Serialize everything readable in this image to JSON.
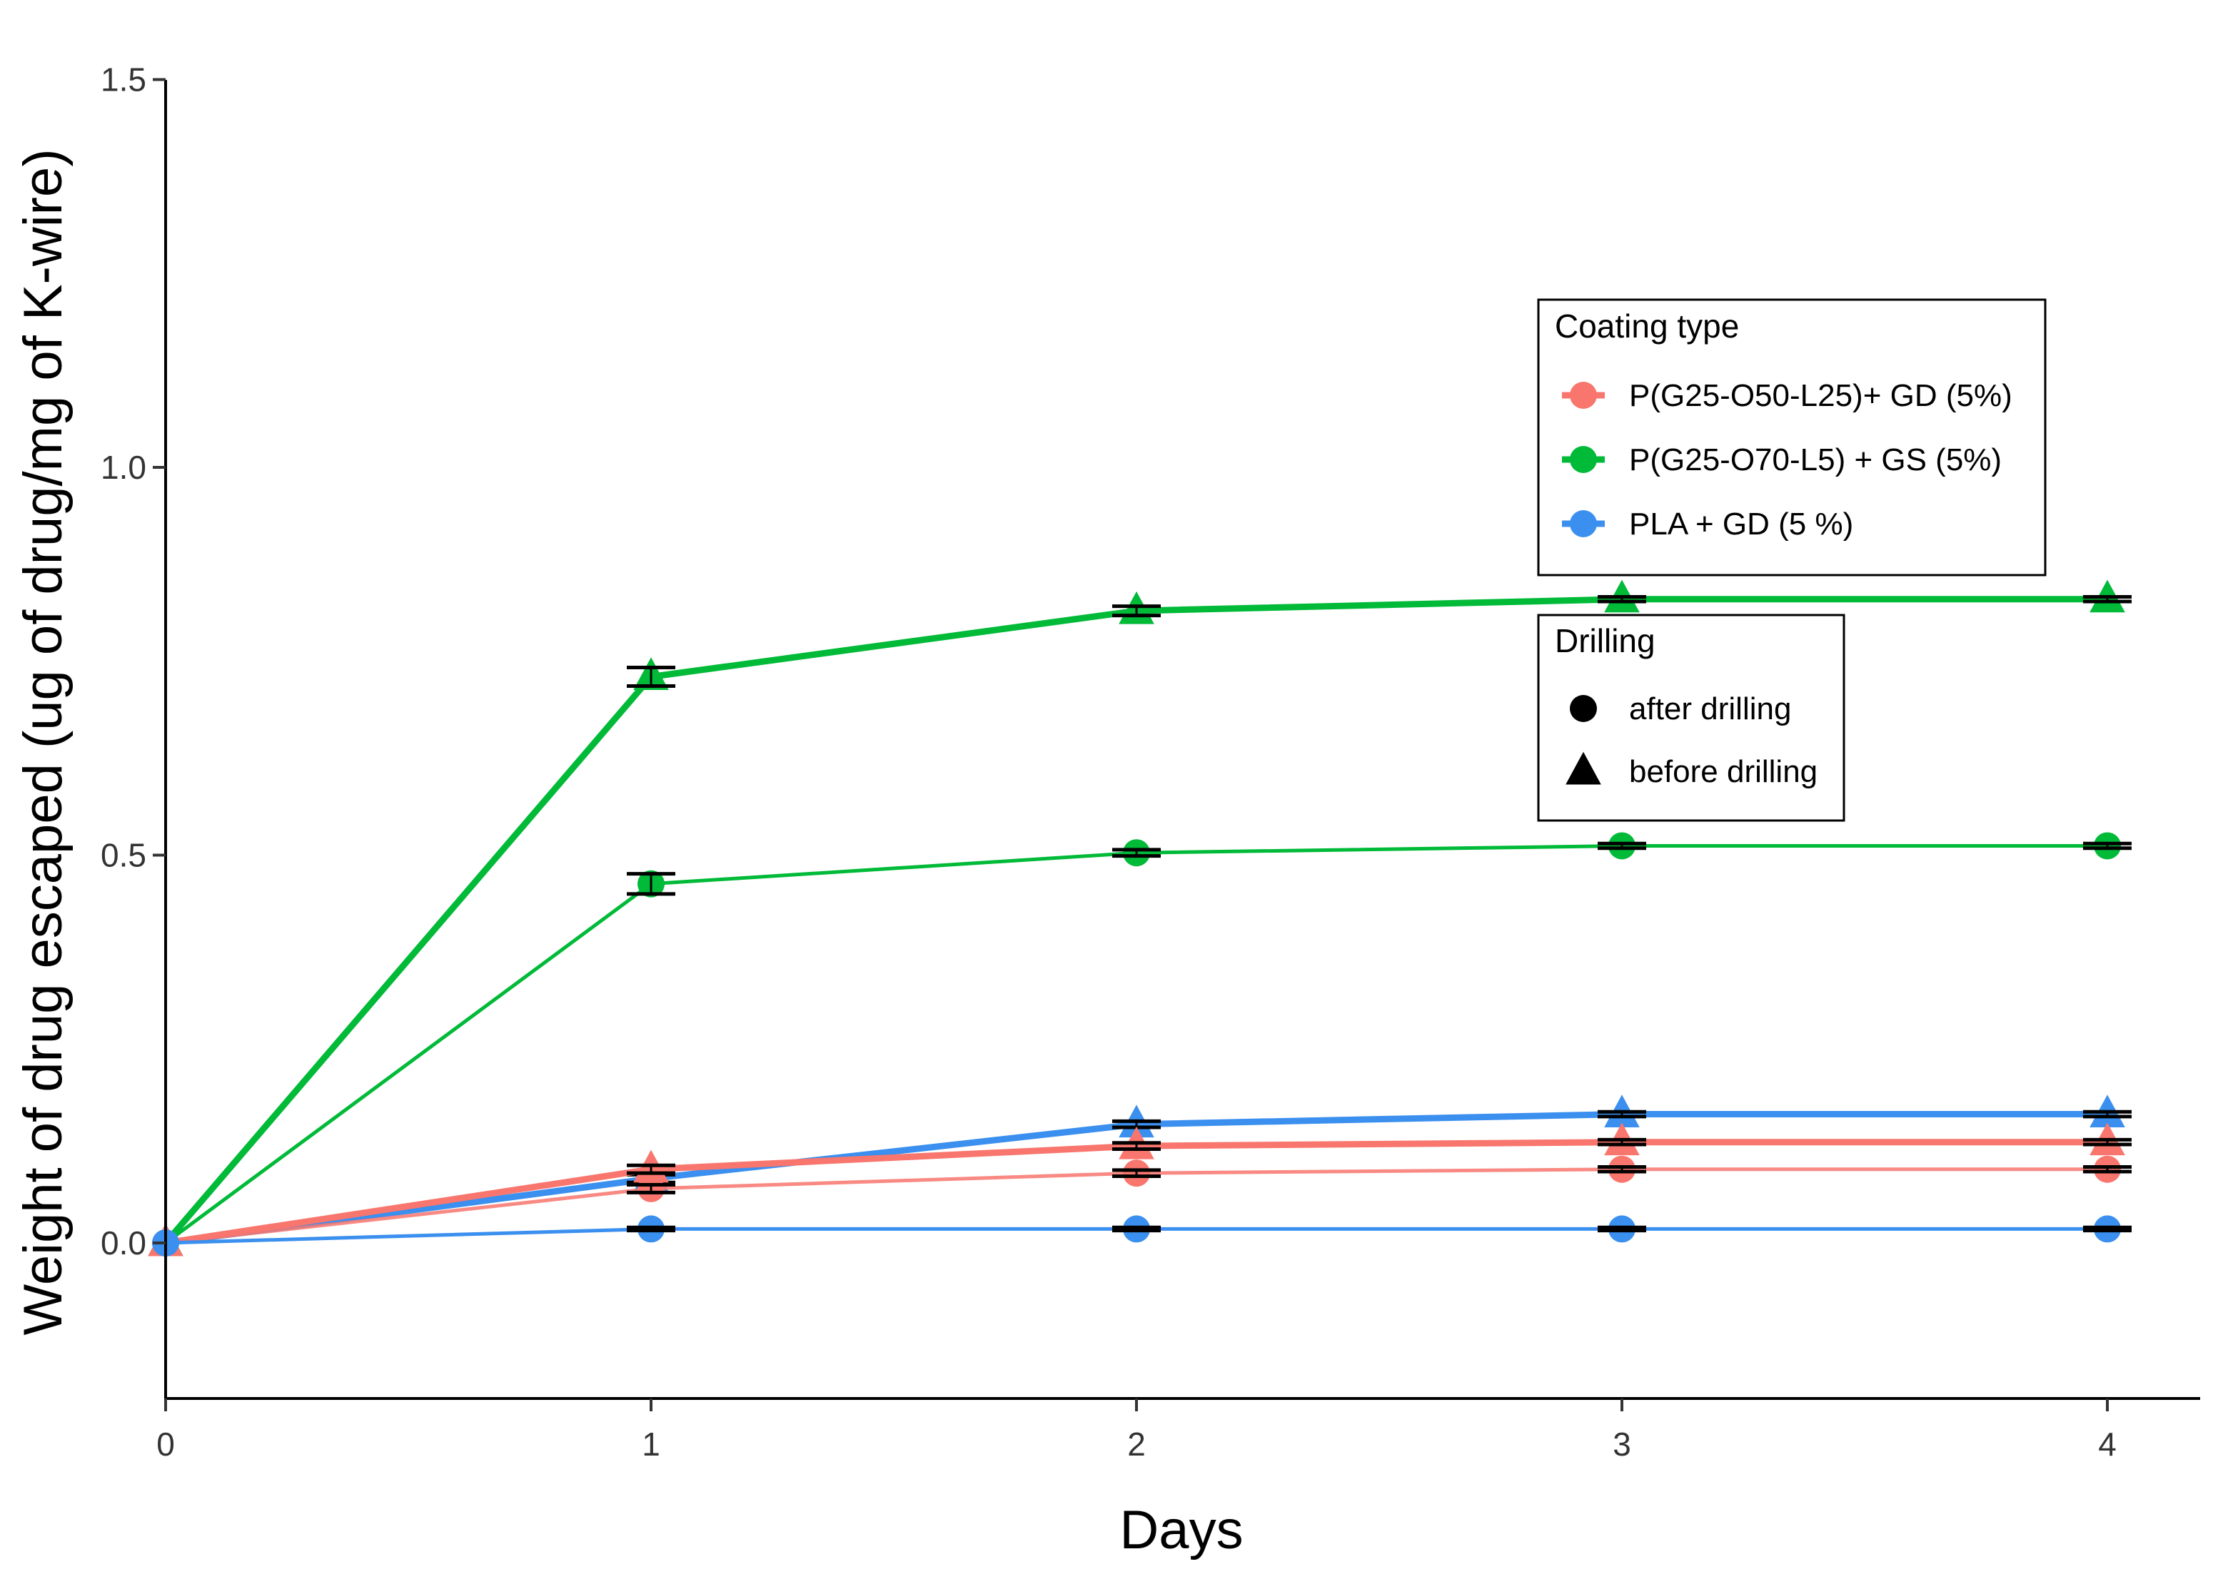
{
  "chart_data": {
    "type": "line",
    "title": "",
    "xlabel": "Days",
    "ylabel": "Weight of drug escaped (ug of drug/mg of K-wire)",
    "xlim": [
      0,
      4.2
    ],
    "ylim": [
      -0.2,
      1.5
    ],
    "xticks": [
      "0",
      "1",
      "2",
      "3",
      "4"
    ],
    "yticks": [
      "0.0",
      "0.5",
      "1.0",
      "1.5"
    ],
    "x": [
      0,
      1,
      2,
      3,
      4
    ],
    "legend_coating": {
      "title": "Coating type",
      "items": [
        {
          "label": "P(G25-O50-L25)+ GD (5%)",
          "color": "#F8766D"
        },
        {
          "label": "P(G25-O70-L5) + GS (5%)",
          "color": "#00BA38"
        },
        {
          "label": "PLA + GD (5 %)",
          "color": "#3A8FEF"
        }
      ]
    },
    "legend_drilling": {
      "title": "Drilling",
      "items": [
        {
          "label": "after drilling",
          "shape": "circle"
        },
        {
          "label": "before drilling",
          "shape": "triangle"
        }
      ]
    },
    "series": [
      {
        "name": "P(G25-O70-L5) + GS (5%) before drilling",
        "coating": 1,
        "shape": "triangle",
        "values": [
          0,
          0.73,
          0.815,
          0.83,
          0.83
        ],
        "error": [
          0,
          0.012,
          0.006,
          0.003,
          0.003
        ]
      },
      {
        "name": "P(G25-O70-L5) + GS (5%) after drilling",
        "coating": 1,
        "shape": "circle",
        "values": [
          0,
          0.463,
          0.503,
          0.512,
          0.512
        ],
        "error": [
          0,
          0.013,
          0.004,
          0.003,
          0.003
        ]
      },
      {
        "name": "PLA + GD (5 %) before drilling",
        "coating": 2,
        "shape": "triangle",
        "values": [
          0,
          0.083,
          0.153,
          0.166,
          0.166
        ],
        "error": [
          0,
          0.005,
          0.004,
          0.003,
          0.003
        ]
      },
      {
        "name": "P(G25-O50-L25)+ GD (5%) before drilling",
        "coating": 0,
        "shape": "triangle",
        "values": [
          0,
          0.095,
          0.125,
          0.13,
          0.13
        ],
        "error": [
          0,
          0.005,
          0.004,
          0.003,
          0.003
        ]
      },
      {
        "name": "P(G25-O50-L25)+ GD (5%) after drilling",
        "coating": 0,
        "shape": "circle",
        "values": [
          0,
          0.07,
          0.09,
          0.095,
          0.095
        ],
        "error": [
          0,
          0.005,
          0.004,
          0.003,
          0.003
        ]
      },
      {
        "name": "PLA + GD (5 %) after drilling",
        "coating": 2,
        "shape": "circle",
        "values": [
          0,
          0.018,
          0.018,
          0.018,
          0.018
        ],
        "error": [
          0,
          0.002,
          0.002,
          0.002,
          0.002
        ]
      }
    ]
  }
}
